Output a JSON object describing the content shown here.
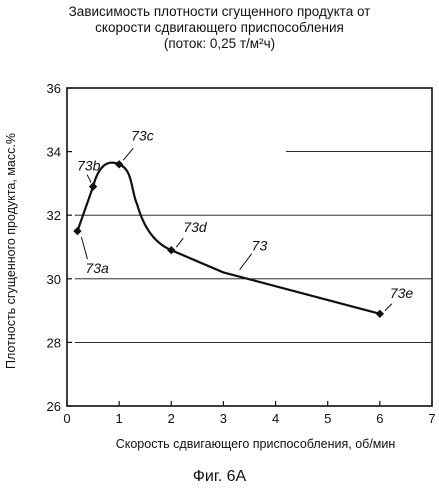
{
  "title": {
    "line1": "Зависимость плотности сгущенного продукта от",
    "line2": "скорости сдвигающего приспособления",
    "line3": "(поток: 0,25 т/м²ч)"
  },
  "figure_caption": "Фиг. 6А",
  "chart_data": {
    "type": "line",
    "title": "Зависимость плотности сгущенного продукта от скорости сдвигающего приспособления (поток: 0,25 т/м²ч)",
    "xlabel": "Скорость сдвигающего приспособления, об/мин",
    "ylabel": "Плотность сгущенного продукта, масс.%",
    "xlim": [
      0,
      7
    ],
    "ylim": [
      26,
      36
    ],
    "xticks": [
      "0",
      "1",
      "2",
      "3",
      "4",
      "5",
      "6",
      "7"
    ],
    "yticks": [
      "26",
      "28",
      "30",
      "32",
      "34",
      "36"
    ],
    "grid": "partial horizontal",
    "series": [
      {
        "name": "73",
        "x": [
          0.2,
          0.5,
          1.0,
          2.0,
          6.0
        ],
        "values": [
          31.5,
          32.9,
          33.6,
          30.9,
          28.9
        ],
        "point_labels": [
          "73a",
          "73b",
          "73c",
          "73d",
          "73e"
        ]
      }
    ],
    "curve_label": "73"
  }
}
